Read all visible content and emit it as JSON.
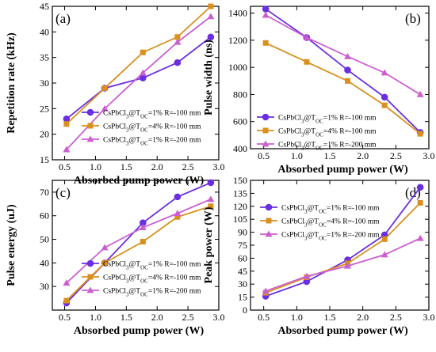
{
  "chart_data": [
    {
      "panel_label": "(a)",
      "type": "line",
      "xlabel": "Absorbed pump power (W)",
      "ylabel": "Repetition rate (kHz)",
      "xlim": [
        0.3,
        3.0
      ],
      "ylim": [
        15,
        45
      ],
      "xticks": [
        "0.5",
        "1.0",
        "1.5",
        "2.0",
        "2.5",
        "3.0"
      ],
      "yticks": [
        "15",
        "20",
        "25",
        "30",
        "35",
        "40",
        "45"
      ],
      "legend_position": "bottom-right",
      "series": [
        {
          "name": "CsPbCl3@T_OC=1% R=-100 mm",
          "color": "#6a2fe0",
          "marker": "circle",
          "x": [
            0.53,
            1.15,
            1.77,
            2.33,
            2.87
          ],
          "y": [
            23,
            29,
            31,
            34,
            39
          ]
        },
        {
          "name": "CsPbCl3@T_OC=4% R=-100 mm",
          "color": "#d8901f",
          "marker": "square",
          "x": [
            0.53,
            1.15,
            1.77,
            2.33,
            2.87
          ],
          "y": [
            22,
            29,
            36,
            39,
            45
          ]
        },
        {
          "name": "CsPbCl3@T_OC=1% R=-200 mm",
          "color": "#cc5fd0",
          "marker": "triangle",
          "x": [
            0.53,
            1.15,
            1.77,
            2.33,
            2.87
          ],
          "y": [
            17,
            25,
            32,
            38,
            43
          ]
        }
      ]
    },
    {
      "panel_label": "(b)",
      "type": "line",
      "xlabel": "Absorbed pump power (W)",
      "ylabel": "Pulse width (ns)",
      "xlim": [
        0.3,
        3.0
      ],
      "ylim": [
        400,
        1450
      ],
      "xticks": [
        "0.5",
        "1.0",
        "1.5",
        "2.0",
        "2.5",
        "3.0"
      ],
      "yticks": [
        "400",
        "600",
        "800",
        "1000",
        "1200",
        "1400"
      ],
      "legend_position": "bottom-left",
      "series": [
        {
          "name": "CsPbCl3@T_OC=1% R=-100 mm",
          "color": "#6a2fe0",
          "marker": "circle",
          "x": [
            0.53,
            1.15,
            1.77,
            2.33,
            2.87
          ],
          "y": [
            1430,
            1220,
            980,
            780,
            520
          ]
        },
        {
          "name": "CsPbCl3@T_OC=4% R=-100 mm",
          "color": "#d8901f",
          "marker": "square",
          "x": [
            0.53,
            1.15,
            1.77,
            2.33,
            2.87
          ],
          "y": [
            1180,
            1040,
            900,
            720,
            510
          ]
        },
        {
          "name": "CsPbCl3@T_OC=1% R=-200 mm",
          "color": "#cc5fd0",
          "marker": "triangle",
          "x": [
            0.53,
            1.15,
            1.77,
            2.33,
            2.87
          ],
          "y": [
            1385,
            1220,
            1080,
            960,
            800
          ]
        }
      ]
    },
    {
      "panel_label": "(c)",
      "type": "line",
      "xlabel": "Absorbed pump power (W)",
      "ylabel": "Pulse energy (uJ)",
      "xlim": [
        0.3,
        3.0
      ],
      "ylim": [
        20,
        75
      ],
      "xticks": [
        "0.5",
        "1.0",
        "1.5",
        "2.0",
        "2.5",
        "3.0"
      ],
      "yticks": [
        "30",
        "40",
        "50",
        "60",
        "70"
      ],
      "legend_position": "bottom-right",
      "series": [
        {
          "name": "CsPbCl3@T_OC=1% R=-100 mm",
          "color": "#6a2fe0",
          "marker": "circle",
          "x": [
            0.53,
            1.15,
            1.77,
            2.33,
            2.87
          ],
          "y": [
            23,
            40,
            57,
            68,
            74
          ]
        },
        {
          "name": "CsPbCl3@T_OC=4% R=-100 mm",
          "color": "#d8901f",
          "marker": "square",
          "x": [
            0.53,
            1.15,
            1.77,
            2.33,
            2.87
          ],
          "y": [
            24,
            40,
            49,
            59.5,
            64
          ]
        },
        {
          "name": "CsPbCl3@T_OC=1% R=-200 mm",
          "color": "#cc5fd0",
          "marker": "triangle",
          "x": [
            0.53,
            1.15,
            1.77,
            2.33,
            2.87
          ],
          "y": [
            31.5,
            46.5,
            55,
            61,
            67
          ]
        }
      ]
    },
    {
      "panel_label": "(d)",
      "type": "line",
      "xlabel": "Absorbed pump power (W)",
      "ylabel": "Peak power (W)",
      "xlim": [
        0.3,
        3.0
      ],
      "ylim": [
        0,
        150
      ],
      "xticks": [
        "0.5",
        "1.0",
        "1.5",
        "2.0",
        "2.5",
        "3.0"
      ],
      "yticks": [
        "0",
        "15",
        "30",
        "45",
        "60",
        "75",
        "90",
        "105",
        "120",
        "135",
        "150"
      ],
      "legend_position": "top-left",
      "series": [
        {
          "name": "CsPbCl3@T_OC=1% R=-100 mm",
          "color": "#6a2fe0",
          "marker": "circle",
          "x": [
            0.53,
            1.15,
            1.77,
            2.33,
            2.87
          ],
          "y": [
            16,
            33,
            58,
            87,
            142
          ]
        },
        {
          "name": "CsPbCl3@T_OC=4% R=-100 mm",
          "color": "#d8901f",
          "marker": "square",
          "x": [
            0.53,
            1.15,
            1.77,
            2.33,
            2.87
          ],
          "y": [
            20,
            38,
            54,
            82,
            124
          ]
        },
        {
          "name": "CsPbCl3@T_OC=1% R=-200 mm",
          "color": "#cc5fd0",
          "marker": "triangle",
          "x": [
            0.53,
            1.15,
            1.77,
            2.33,
            2.87
          ],
          "y": [
            22,
            39,
            51,
            64,
            83
          ]
        }
      ]
    }
  ],
  "legend_labels": [
    {
      "prefix": "CsPbCl",
      "sub_3": "3",
      "mid": "@T",
      "sub_oc": "OC",
      "suffix": "=1% R=-100 mm"
    },
    {
      "prefix": "CsPbCl",
      "sub_3": "3",
      "mid": "@T",
      "sub_oc": "OC",
      "suffix": "=4% R=-100 mm"
    },
    {
      "prefix": "CsPbCl",
      "sub_3": "3",
      "mid": "@T",
      "sub_oc": "OC",
      "suffix": "=1% R=-200 mm"
    }
  ]
}
